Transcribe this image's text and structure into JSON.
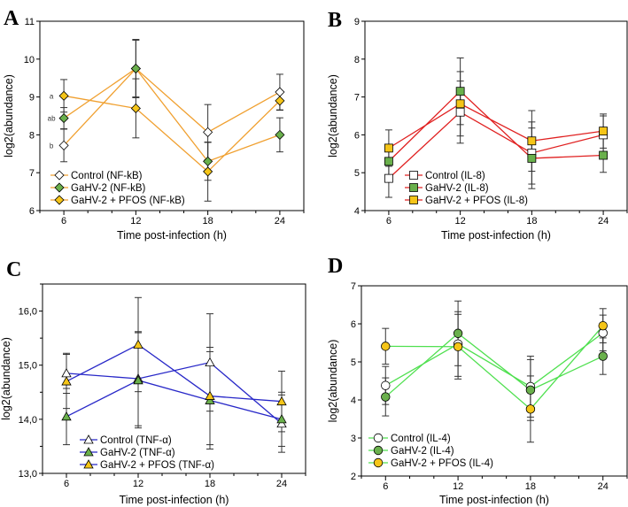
{
  "chart_data": [
    {
      "type": "line",
      "panel_label": "A",
      "xlabel": "Time post-infection (h)",
      "ylabel": "log2(abundance)",
      "x": [
        6,
        12,
        18,
        24
      ],
      "xticks": [
        "6",
        "12",
        "18",
        "24"
      ],
      "xlim": [
        4,
        26
      ],
      "ylim": [
        6,
        11
      ],
      "yticks": [
        "6",
        "7",
        "8",
        "9",
        "10",
        "11"
      ],
      "line_color": "#f0a030",
      "marker": "diamond",
      "legend_placement": "bottom-left",
      "annotations": [
        {
          "text": "a",
          "x": 6,
          "y": 9.03
        },
        {
          "text": "ab",
          "x": 6,
          "y": 8.44
        },
        {
          "text": "b",
          "x": 6,
          "y": 7.72
        }
      ],
      "series": [
        {
          "name": "Control (NF-kB)",
          "marker_color": "#ffffff",
          "values": [
            7.72,
            9.75,
            8.07,
            9.13
          ],
          "errors": [
            0.43,
            0.77,
            0.73,
            0.47
          ]
        },
        {
          "name": "GaHV-2 (NF-kB)",
          "marker_color": "#6ab04c",
          "values": [
            8.44,
            9.75,
            7.3,
            8.0
          ],
          "errors": [
            0.28,
            0.75,
            0.5,
            0.45
          ]
        },
        {
          "name": "GaHV-2 + PFOS (NF-kB)",
          "marker_color": "#f5c518",
          "values": [
            9.03,
            8.7,
            7.03,
            8.9
          ],
          "errors": [
            0.43,
            0.78,
            0.78,
            0.25
          ]
        }
      ]
    },
    {
      "type": "line",
      "panel_label": "B",
      "xlabel": "Time post-infection (h)",
      "ylabel": "log2(abundance)",
      "x": [
        6,
        12,
        18,
        24
      ],
      "xticks": [
        "6",
        "12",
        "18",
        "24"
      ],
      "xlim": [
        4,
        26
      ],
      "ylim": [
        4,
        9
      ],
      "yticks": [
        "4",
        "5",
        "6",
        "7",
        "8",
        "9"
      ],
      "line_color": "#e02020",
      "marker": "square",
      "legend_placement": "bottom-center",
      "series": [
        {
          "name": "Control (IL-8)",
          "marker_color": "#ffffff",
          "values": [
            4.85,
            6.6,
            5.52,
            6.0
          ],
          "errors": [
            0.5,
            0.82,
            0.82,
            0.5
          ]
        },
        {
          "name": "GaHV-2 (IL-8)",
          "marker_color": "#6ab04c",
          "values": [
            5.3,
            7.15,
            5.38,
            5.46
          ],
          "errors": [
            0.45,
            0.88,
            0.8,
            0.45
          ]
        },
        {
          "name": "GaHV-2 + PFOS (IL-8)",
          "marker_color": "#f5c518",
          "values": [
            5.65,
            6.82,
            5.84,
            6.1
          ],
          "errors": [
            0.48,
            0.85,
            0.8,
            0.45
          ]
        }
      ]
    },
    {
      "type": "line",
      "panel_label": "C",
      "xlabel": "Time post-infection (h)",
      "ylabel": "log2(abundance)",
      "x": [
        6,
        12,
        18,
        24
      ],
      "xticks": [
        "6",
        "12",
        "18",
        "24"
      ],
      "xlim": [
        4,
        26
      ],
      "ylim": [
        13,
        16.5
      ],
      "yticks": [
        "13,0",
        "14,0",
        "15,0",
        "16,0"
      ],
      "line_color": "#2828c8",
      "marker": "triangle",
      "legend_placement": "bottom-left",
      "series": [
        {
          "name": "Control (TNF-α)",
          "marker_color": "#ffffff",
          "values": [
            14.85,
            14.75,
            15.05,
            13.92
          ],
          "errors": [
            0.37,
            0.87,
            0.9,
            0.53
          ]
        },
        {
          "name": "GaHV-2 (TNF-α)",
          "marker_color": "#6ab04c",
          "values": [
            14.05,
            14.72,
            14.35,
            14.0
          ],
          "errors": [
            0.52,
            0.88,
            0.9,
            0.5
          ]
        },
        {
          "name": "GaHV-2 + PFOS (TNF-α)",
          "marker_color": "#f5c518",
          "values": [
            14.7,
            15.38,
            14.43,
            14.33
          ],
          "errors": [
            0.5,
            0.87,
            0.9,
            0.56
          ]
        }
      ]
    },
    {
      "type": "line",
      "panel_label": "D",
      "xlabel": "Time post-infection (h)",
      "ylabel": "log2(abundance)",
      "x": [
        6,
        12,
        18,
        24
      ],
      "xticks": [
        "6",
        "12",
        "18",
        "24"
      ],
      "xlim": [
        4,
        26
      ],
      "ylim": [
        2,
        7
      ],
      "yticks": [
        "2",
        "3",
        "4",
        "5",
        "6",
        "7"
      ],
      "line_color": "#50e050",
      "marker": "circle",
      "legend_placement": "bottom-left",
      "series": [
        {
          "name": "Control (IL-4)",
          "marker_color": "#ffffff",
          "values": [
            4.38,
            5.47,
            4.35,
            5.76
          ],
          "errors": [
            0.5,
            0.85,
            0.8,
            0.47
          ]
        },
        {
          "name": "GaHV-2 (IL-4)",
          "marker_color": "#6ab04c",
          "values": [
            4.08,
            5.75,
            4.26,
            5.15
          ],
          "errors": [
            0.5,
            0.85,
            0.8,
            0.48
          ]
        },
        {
          "name": "GaHV-2 + PFOS (IL-4)",
          "marker_color": "#f5c518",
          "values": [
            5.41,
            5.4,
            3.76,
            5.95
          ],
          "errors": [
            0.47,
            0.85,
            0.87,
            0.45
          ]
        }
      ]
    }
  ]
}
